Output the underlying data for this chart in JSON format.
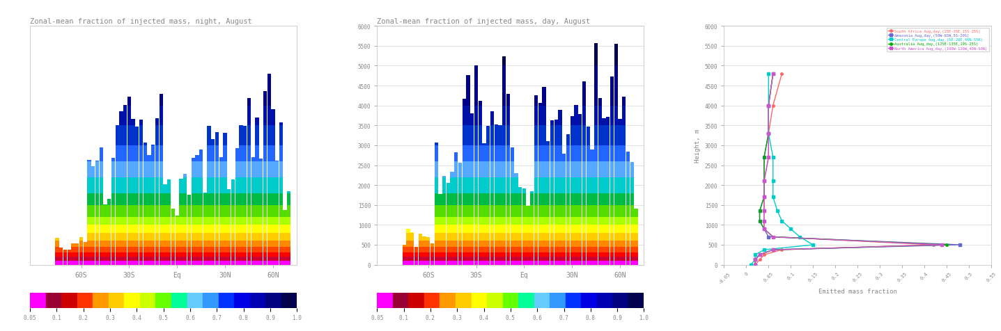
{
  "title_night": "Zonal-mean fraction of injected mass, night, August",
  "title_day": "Zonal-mean fraction of injected mass, day, August",
  "xlabel_right": "Emitted mass fraction",
  "ylabel_right": "Height, m",
  "colorbar_colors": [
    "#00004c",
    "#000080",
    "#0000b3",
    "#0000e6",
    "#0033ff",
    "#3399ff",
    "#66ccff",
    "#00ff99",
    "#66ff00",
    "#ccff00",
    "#ffff00",
    "#ffcc00",
    "#ff9900",
    "#ff3300",
    "#cc0000",
    "#990033",
    "#ff00ff"
  ],
  "colorbar_labels": [
    "0.05",
    "0.1",
    "0.2",
    "0.3",
    "0.4",
    "0.5",
    "0.6",
    "0.7",
    "0.8",
    "0.9",
    "1.0"
  ],
  "lat_ticks": [
    -60,
    -30,
    0,
    30,
    60
  ],
  "lat_labels": [
    "60S",
    "30S",
    "Eq",
    "30N",
    "60N"
  ],
  "region_labels": [
    "South Africa Aug,day,(25E-35E,15S-25S)",
    "Amazonia Aug,day,(50W-65W,5S-20S)",
    "Central Europe Aug,day,(5E-20E,40N-55N)",
    "Australia Aug,day,(125E-135E,19S-25S)",
    "North America Aug,day,(100W-120W,40N-50N)"
  ],
  "region_colors": [
    "#ff6666",
    "#6666cc",
    "#00cccc",
    "#00aa00",
    "#cc55cc"
  ],
  "right_yticks": [
    0,
    500,
    1000,
    1500,
    2000,
    2500,
    3000,
    3500,
    4000,
    4500,
    5000,
    5500,
    6000
  ],
  "right_xticks": [
    -0.05,
    0.0,
    0.05,
    0.1,
    0.15,
    0.2,
    0.25,
    0.3,
    0.35,
    0.4,
    0.45,
    0.5,
    0.55
  ]
}
